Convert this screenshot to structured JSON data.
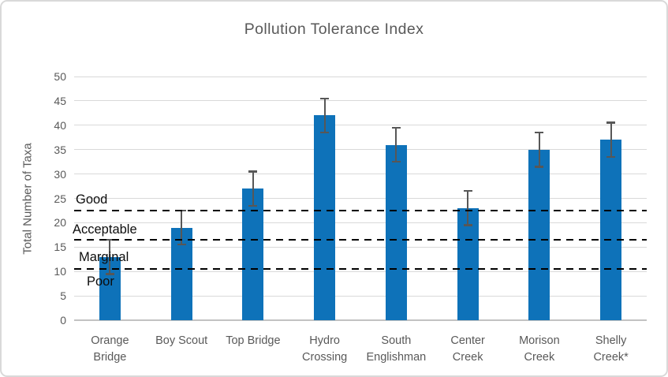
{
  "chart_data": {
    "type": "bar",
    "title": "Pollution Tolerance Index",
    "ylabel": "Total Number of Taxa",
    "xlabel": "",
    "categories": [
      "Orange Bridge",
      "Boy Scout",
      "Top Bridge",
      "Hydro Crossing",
      "South Englishman",
      "Center Creek",
      "Morison Creek",
      "Shelly Creek*"
    ],
    "xtick_lines": [
      [
        "Orange",
        "Bridge"
      ],
      [
        "Boy Scout"
      ],
      [
        "Top Bridge"
      ],
      [
        "Hydro",
        "Crossing"
      ],
      [
        "South",
        "Englishman"
      ],
      [
        "Center",
        "Creek"
      ],
      [
        "Morison",
        "Creek"
      ],
      [
        "Shelly",
        "Creek*"
      ]
    ],
    "values": [
      13,
      19,
      27,
      42,
      36,
      23,
      35,
      37
    ],
    "error_plus_minus": [
      3.5,
      3.5,
      3.5,
      3.5,
      3.5,
      3.5,
      3.5,
      3.5
    ],
    "ylim": [
      0,
      50
    ],
    "yticks": [
      0,
      5,
      10,
      15,
      20,
      25,
      30,
      35,
      40,
      45,
      50
    ],
    "grid": true,
    "legend": false,
    "reference_lines": [
      {
        "value": 22.5
      },
      {
        "value": 16.5
      },
      {
        "value": 10.5
      }
    ],
    "zone_labels": [
      {
        "text": "Good",
        "y": 24.6
      },
      {
        "text": "Acceptable",
        "y": 18.5
      },
      {
        "text": "Marginal",
        "y": 12.8
      },
      {
        "text": "Poor",
        "y": 7.8
      }
    ],
    "colors": {
      "bar": "#0e72b9",
      "error_bar": "#575757",
      "gridline": "#d9d9d9",
      "axis_line": "#c2c2c2",
      "axis_text": "#595959",
      "threshold_line": "#000000",
      "zone_label_text": "#0d0d0d",
      "chart_border": "#d9d9d9",
      "background": "#ffffff"
    }
  }
}
